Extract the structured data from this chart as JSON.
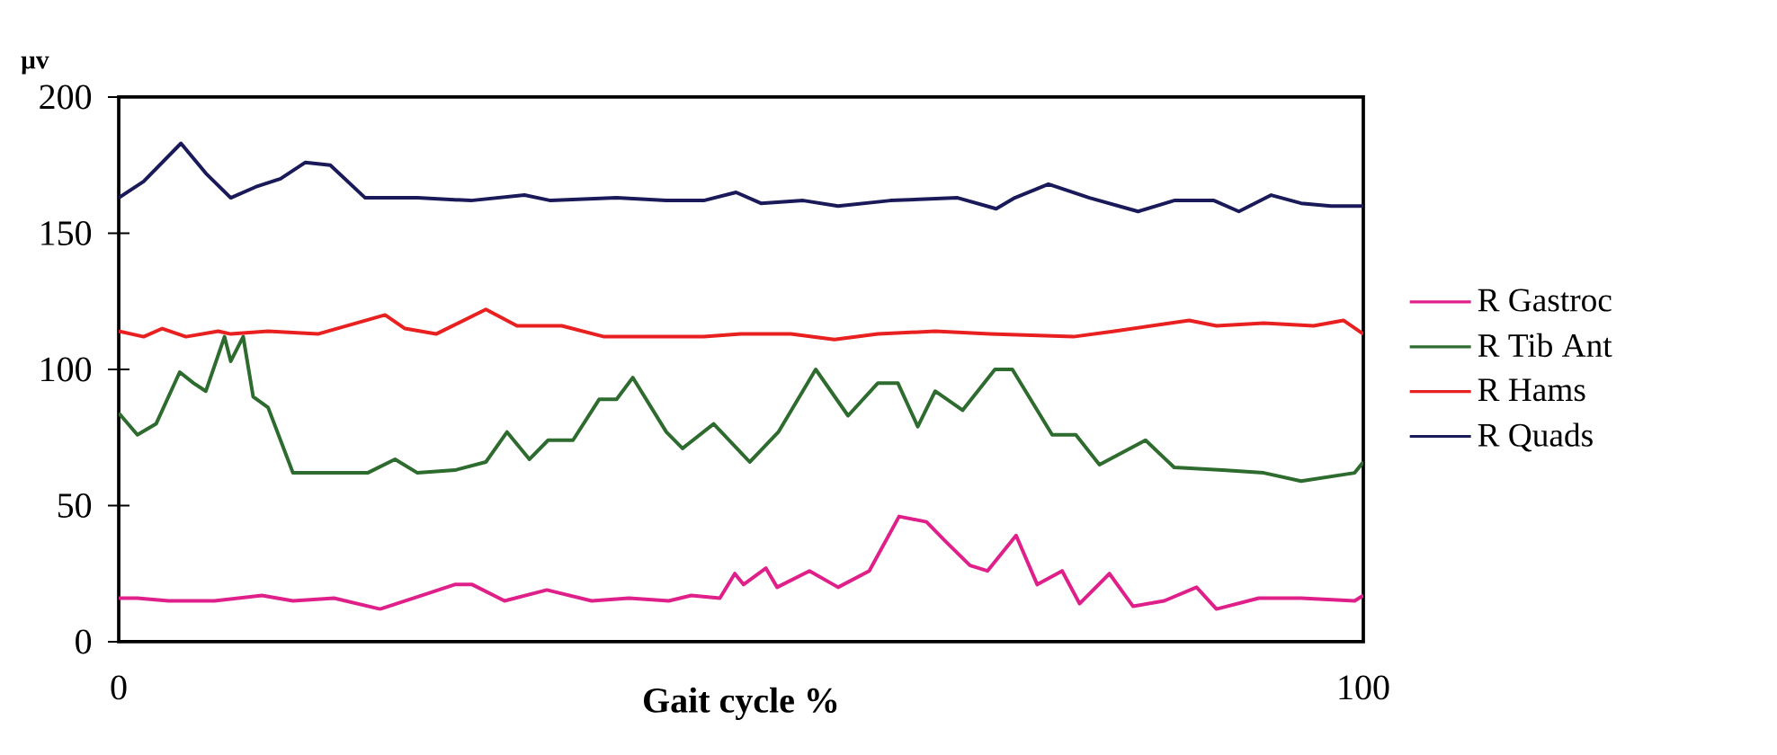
{
  "chart_data": {
    "type": "line",
    "xlabel": "Gait cycle %",
    "ylabel": "µv",
    "xlim": [
      0,
      100
    ],
    "ylim": [
      0,
      200
    ],
    "xticks": [
      0,
      100
    ],
    "yticks": [
      0,
      50,
      100,
      150,
      200
    ],
    "legend": "right",
    "series": [
      {
        "name": "R Gastroc",
        "color": "#e0208a",
        "x": [
          0,
          1.5,
          4,
          7.7,
          11.5,
          14,
          17.3,
          21,
          24.7,
          27,
          28.4,
          31,
          34.4,
          38,
          41,
          44.2,
          46,
          48.3,
          49.5,
          50.2,
          52,
          52.9,
          55.5,
          57.8,
          60.3,
          62.7,
          64.9,
          66.4,
          68.4,
          69.8,
          72.1,
          73.8,
          75.8,
          77.2,
          79.6,
          81.5,
          84,
          86.6,
          88.2,
          91.6,
          95,
          99.3,
          100
        ],
        "values": [
          16,
          16,
          15,
          15,
          17,
          15,
          16,
          12,
          17.5,
          21,
          21,
          15,
          19,
          15,
          16,
          15,
          17,
          16,
          25,
          21,
          27,
          20,
          26,
          20,
          26,
          46,
          44,
          37,
          28,
          26,
          39,
          21,
          26,
          14,
          25,
          13,
          15,
          20,
          12,
          16,
          16,
          15,
          17
        ]
      },
      {
        "name": "R Tib Ant",
        "color": "#2e6b2e",
        "x": [
          0,
          1.5,
          3,
          4.9,
          6,
          7,
          8.5,
          9,
          10,
          10.8,
          12,
          14,
          17,
          20,
          22.2,
          24,
          27,
          29.5,
          31.2,
          33,
          34.5,
          36.5,
          38.6,
          40,
          41.3,
          44,
          45.3,
          47.8,
          50.7,
          53,
          56,
          58.6,
          61,
          62.6,
          64.2,
          65.6,
          67.8,
          70.4,
          71.8,
          75,
          76.9,
          78.8,
          82.5,
          84.8,
          88.7,
          92,
          95,
          99.3,
          100
        ],
        "values": [
          84,
          76,
          80,
          99,
          95,
          92,
          112,
          103,
          112,
          90,
          86,
          62,
          62,
          62,
          67,
          62,
          63,
          66,
          77,
          67,
          74,
          74,
          89,
          89,
          97,
          77,
          71,
          80,
          66,
          77,
          100,
          83,
          95,
          95,
          79,
          92,
          85,
          100,
          100,
          76,
          76,
          65,
          74,
          64,
          63,
          62,
          59,
          62,
          66
        ]
      },
      {
        "name": "R Hams",
        "color": "#e82020",
        "x": [
          0,
          2,
          3.5,
          5.4,
          8,
          9,
          12,
          16,
          21.4,
          23,
          25.5,
          29.5,
          32,
          35.6,
          39,
          43,
          47,
          50,
          54,
          57.5,
          61,
          65.6,
          70,
          76.7,
          80,
          86,
          88.2,
          92,
          96,
          98.4,
          100
        ],
        "values": [
          114,
          112,
          115,
          112,
          114,
          113,
          114,
          113,
          120,
          115,
          113,
          122,
          116,
          116,
          112,
          112,
          112,
          113,
          113,
          111,
          113,
          114,
          113,
          112,
          114,
          118,
          116,
          117,
          116,
          118,
          113
        ]
      },
      {
        "name": "R Quads",
        "color": "#1a1a5a",
        "x": [
          0,
          2,
          5,
          7,
          9,
          11,
          13,
          15,
          17,
          19.8,
          24,
          28.3,
          32.6,
          34.7,
          40,
          44,
          47,
          49.6,
          51.6,
          55,
          57.8,
          62,
          67.4,
          70.5,
          72,
          74.7,
          78,
          81.9,
          84.8,
          88,
          90,
          92.6,
          95,
          97.4,
          100
        ],
        "values": [
          163,
          169,
          183,
          172,
          163,
          167,
          170,
          176,
          175,
          163,
          163,
          162,
          164,
          162,
          163,
          162,
          162,
          165,
          161,
          162,
          160,
          162,
          163,
          159,
          163,
          168,
          163,
          158,
          162,
          162,
          158,
          164,
          161,
          160,
          160
        ]
      }
    ]
  }
}
